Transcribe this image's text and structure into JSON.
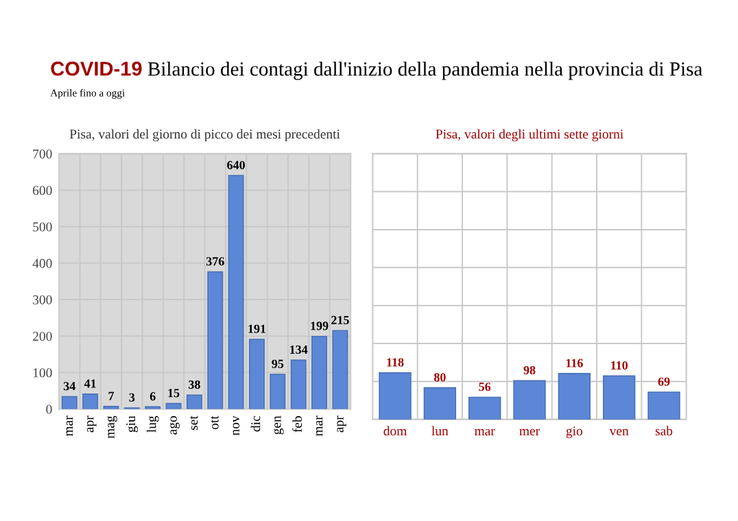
{
  "chart_data": [
    {
      "type": "other",
      "title": "COVID-19 Bilancio dei contagi dall'inizio della pandemia nella provincia di Pisa",
      "subtitle": "Aprile fino a oggi"
    },
    {
      "type": "bar",
      "title": "Pisa, valori del giorno di picco dei mesi precedenti",
      "categories": [
        "mar",
        "apr",
        "mag",
        "giu",
        "lug",
        "ago",
        "set",
        "ott",
        "nov",
        "dic",
        "gen",
        "feb",
        "mar",
        "apr"
      ],
      "values": [
        34,
        41,
        7,
        3,
        6,
        15,
        38,
        376,
        640,
        191,
        95,
        134,
        199,
        215
      ],
      "color": "#5b87d6",
      "ylim": [
        0,
        700
      ],
      "yticks": [
        0,
        100,
        200,
        300,
        400,
        500,
        600,
        700
      ],
      "grid": true,
      "data_labels": true
    },
    {
      "type": "bar",
      "title": "Pisa, valori degli ultimi sette giorni",
      "categories": [
        "dom",
        "lun",
        "mar",
        "mer",
        "gio",
        "ven",
        "sab"
      ],
      "values": [
        118,
        80,
        56,
        98,
        116,
        110,
        69
      ],
      "color": "#5b87d6",
      "grid": true,
      "data_labels": true,
      "tick_labels": "x"
    }
  ]
}
